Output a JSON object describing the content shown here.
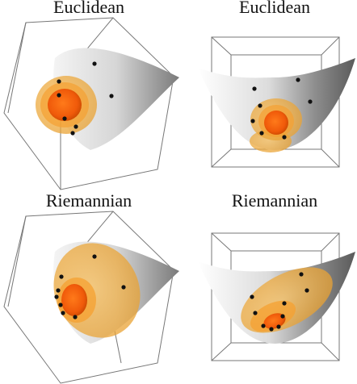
{
  "panels": [
    {
      "title": "Euclidean"
    },
    {
      "title": "Euclidean"
    },
    {
      "title": "Riemannian"
    },
    {
      "title": "Riemannian"
    }
  ]
}
